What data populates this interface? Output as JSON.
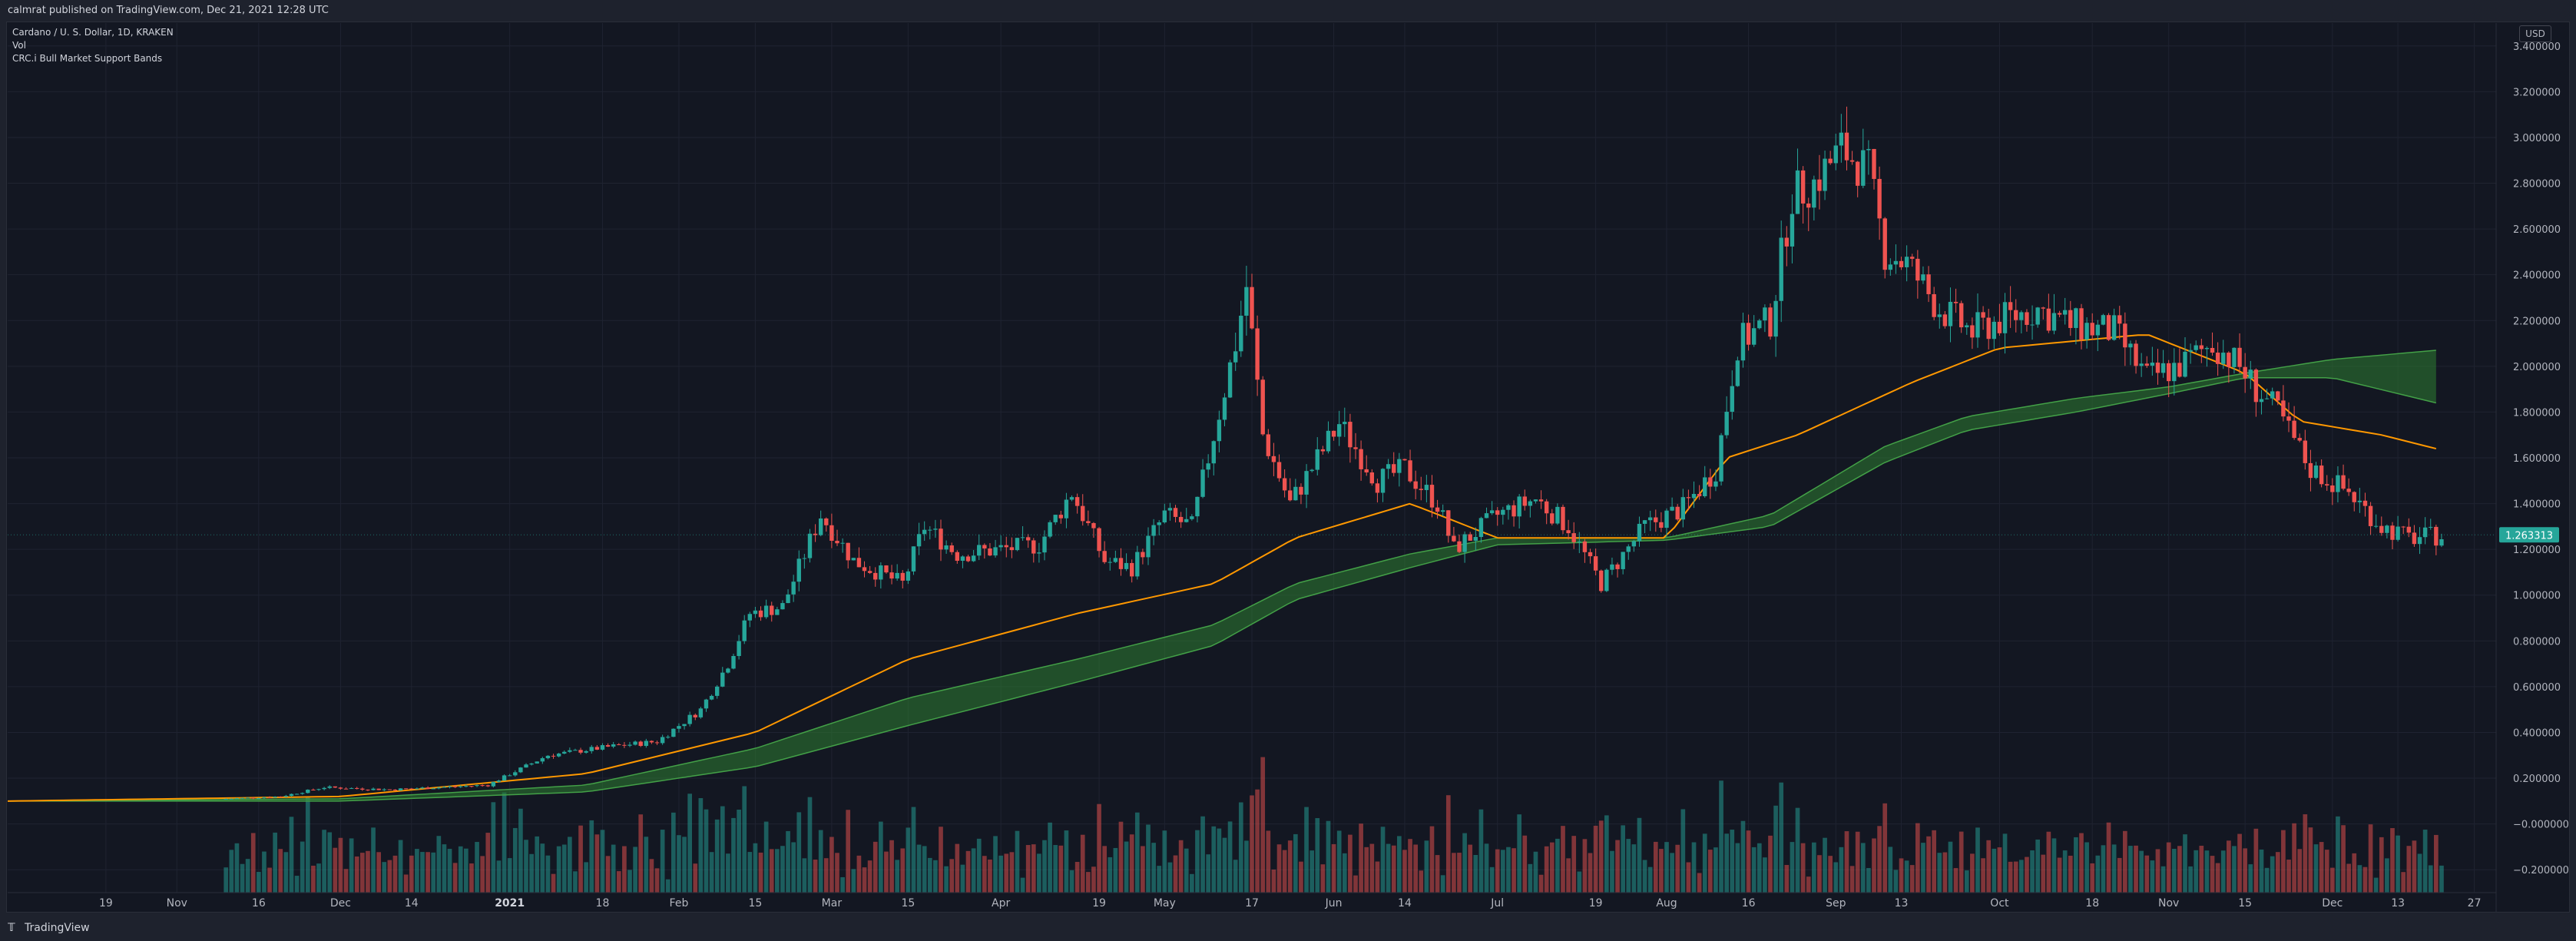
{
  "header": {
    "published": "calmrat published on TradingView.com, Dec 21, 2021 12:28 UTC"
  },
  "legend": {
    "symbol": "Cardano / U. S. Dollar, 1D, KRAKEN",
    "volume": "Vol",
    "indicator": "CRC.i Bull Market Support Bands"
  },
  "currency": "USD",
  "footer": {
    "brand": "TradingView",
    "logo_icon": "tradingview-logo-icon"
  },
  "last_price": "1.263313",
  "colors": {
    "up": "#26a69a",
    "down": "#ef5350",
    "bg": "#131722",
    "ema": "#ff9800",
    "band_bull": "#2e7d32",
    "band_bear": "#c62828",
    "price_line": "#26a69a"
  },
  "chart_data": {
    "type": "candlestick",
    "title": "Cardano / U. S. Dollar, 1D, KRAKEN",
    "ylim": [
      -0.3,
      3.5
    ],
    "y_ticks": [
      "3.400000",
      "3.200000",
      "3.000000",
      "2.800000",
      "2.600000",
      "2.400000",
      "2.200000",
      "2.000000",
      "1.800000",
      "1.600000",
      "1.400000",
      "1.200000",
      "1.000000",
      "0.800000",
      "0.600000",
      "0.400000",
      "0.200000",
      "−0.000000",
      "−0.200000"
    ],
    "y_tick_values": [
      3.4,
      3.2,
      3.0,
      2.8,
      2.6,
      2.4,
      2.2,
      2.0,
      1.8,
      1.6,
      1.4,
      1.2,
      1.0,
      0.8,
      0.6,
      0.4,
      0.2,
      0.0,
      -0.2
    ],
    "x_ticks": [
      {
        "label": "19",
        "date": "2020-10-19"
      },
      {
        "label": "Nov",
        "date": "2020-11-01"
      },
      {
        "label": "16",
        "date": "2020-11-16"
      },
      {
        "label": "Dec",
        "date": "2020-12-01"
      },
      {
        "label": "14",
        "date": "2020-12-14"
      },
      {
        "label": "2021",
        "date": "2021-01-01",
        "bold": true
      },
      {
        "label": "18",
        "date": "2021-01-18"
      },
      {
        "label": "Feb",
        "date": "2021-02-01"
      },
      {
        "label": "15",
        "date": "2021-02-15"
      },
      {
        "label": "Mar",
        "date": "2021-03-01"
      },
      {
        "label": "15",
        "date": "2021-03-15"
      },
      {
        "label": "Apr",
        "date": "2021-04-01"
      },
      {
        "label": "19",
        "date": "2021-04-19"
      },
      {
        "label": "May",
        "date": "2021-05-01"
      },
      {
        "label": "17",
        "date": "2021-05-17"
      },
      {
        "label": "Jun",
        "date": "2021-06-01"
      },
      {
        "label": "14",
        "date": "2021-06-14"
      },
      {
        "label": "Jul",
        "date": "2021-07-01"
      },
      {
        "label": "19",
        "date": "2021-07-19"
      },
      {
        "label": "Aug",
        "date": "2021-08-01"
      },
      {
        "label": "16",
        "date": "2021-08-16"
      },
      {
        "label": "Sep",
        "date": "2021-09-01"
      },
      {
        "label": "13",
        "date": "2021-09-13"
      },
      {
        "label": "Oct",
        "date": "2021-10-01"
      },
      {
        "label": "18",
        "date": "2021-10-18"
      },
      {
        "label": "Nov",
        "date": "2021-11-01"
      },
      {
        "label": "15",
        "date": "2021-11-15"
      },
      {
        "label": "Dec",
        "date": "2021-12-01"
      },
      {
        "label": "13",
        "date": "2021-12-13"
      },
      {
        "label": "27",
        "date": "2021-12-27"
      }
    ],
    "x_range": [
      "2020-10-01",
      "2021-12-31"
    ],
    "price_path": [
      [
        "2020-10-01",
        0.1
      ],
      [
        "2020-11-01",
        0.1
      ],
      [
        "2020-11-20",
        0.12
      ],
      [
        "2020-11-28",
        0.16
      ],
      [
        "2020-12-10",
        0.15
      ],
      [
        "2020-12-28",
        0.17
      ],
      [
        "2021-01-08",
        0.3
      ],
      [
        "2021-01-20",
        0.34
      ],
      [
        "2021-01-28",
        0.36
      ],
      [
        "2021-02-05",
        0.5
      ],
      [
        "2021-02-10",
        0.7
      ],
      [
        "2021-02-14",
        0.92
      ],
      [
        "2021-02-20",
        0.95
      ],
      [
        "2021-02-27",
        1.35
      ],
      [
        "2021-03-05",
        1.15
      ],
      [
        "2021-03-14",
        1.05
      ],
      [
        "2021-03-18",
        1.3
      ],
      [
        "2021-03-24",
        1.18
      ],
      [
        "2021-04-01",
        1.2
      ],
      [
        "2021-04-08",
        1.22
      ],
      [
        "2021-04-14",
        1.45
      ],
      [
        "2021-04-20",
        1.15
      ],
      [
        "2021-04-25",
        1.12
      ],
      [
        "2021-05-01",
        1.35
      ],
      [
        "2021-05-06",
        1.3
      ],
      [
        "2021-05-10",
        1.7
      ],
      [
        "2021-05-14",
        2.1
      ],
      [
        "2021-05-16",
        2.35
      ],
      [
        "2021-05-19",
        1.7
      ],
      [
        "2021-05-24",
        1.4
      ],
      [
        "2021-06-02",
        1.75
      ],
      [
        "2021-06-09",
        1.5
      ],
      [
        "2021-06-14",
        1.55
      ],
      [
        "2021-06-20",
        1.4
      ],
      [
        "2021-06-23",
        1.2
      ],
      [
        "2021-07-01",
        1.35
      ],
      [
        "2021-07-08",
        1.42
      ],
      [
        "2021-07-14",
        1.3
      ],
      [
        "2021-07-20",
        1.05
      ],
      [
        "2021-07-28",
        1.3
      ],
      [
        "2021-08-04",
        1.38
      ],
      [
        "2021-08-10",
        1.55
      ],
      [
        "2021-08-14",
        2.1
      ],
      [
        "2021-08-20",
        2.2
      ],
      [
        "2021-08-24",
        2.75
      ],
      [
        "2021-08-28",
        2.8
      ],
      [
        "2021-09-02",
        2.95
      ],
      [
        "2021-09-07",
        2.85
      ],
      [
        "2021-09-10",
        2.5
      ],
      [
        "2021-09-14",
        2.45
      ],
      [
        "2021-09-20",
        2.25
      ],
      [
        "2021-09-26",
        2.15
      ],
      [
        "2021-10-01",
        2.2
      ],
      [
        "2021-10-08",
        2.25
      ],
      [
        "2021-10-14",
        2.18
      ],
      [
        "2021-10-22",
        2.15
      ],
      [
        "2021-10-28",
        1.95
      ],
      [
        "2021-11-03",
        2.0
      ],
      [
        "2021-11-09",
        2.1
      ],
      [
        "2021-11-14",
        2.0
      ],
      [
        "2021-11-17",
        1.9
      ],
      [
        "2021-11-21",
        1.8
      ],
      [
        "2021-11-27",
        1.55
      ],
      [
        "2021-12-04",
        1.45
      ],
      [
        "2021-12-10",
        1.3
      ],
      [
        "2021-12-15",
        1.25
      ],
      [
        "2021-12-21",
        1.26
      ]
    ],
    "ema_21": [
      [
        "2020-10-01",
        0.1
      ],
      [
        "2020-12-01",
        0.12
      ],
      [
        "2021-01-15",
        0.22
      ],
      [
        "2021-02-15",
        0.4
      ],
      [
        "2021-03-15",
        0.72
      ],
      [
        "2021-04-15",
        0.92
      ],
      [
        "2021-05-10",
        1.05
      ],
      [
        "2021-05-25",
        1.25
      ],
      [
        "2021-06-15",
        1.4
      ],
      [
        "2021-07-01",
        1.25
      ],
      [
        "2021-08-01",
        1.25
      ],
      [
        "2021-08-12",
        1.6
      ],
      [
        "2021-08-25",
        1.7
      ],
      [
        "2021-09-15",
        1.93
      ],
      [
        "2021-10-01",
        2.08
      ],
      [
        "2021-10-28",
        2.14
      ],
      [
        "2021-11-15",
        1.97
      ],
      [
        "2021-11-25",
        1.76
      ],
      [
        "2021-12-10",
        1.7
      ],
      [
        "2021-12-20",
        1.64
      ]
    ],
    "bull_band_upper": [
      [
        "2020-10-01",
        0.1
      ],
      [
        "2020-12-01",
        0.11
      ],
      [
        "2021-01-15",
        0.17
      ],
      [
        "2021-02-15",
        0.33
      ],
      [
        "2021-03-15",
        0.55
      ],
      [
        "2021-04-15",
        0.72
      ],
      [
        "2021-05-10",
        0.87
      ],
      [
        "2021-05-25",
        1.05
      ],
      [
        "2021-06-15",
        1.18
      ],
      [
        "2021-07-01",
        1.25
      ],
      [
        "2021-08-01",
        1.25
      ],
      [
        "2021-08-20",
        1.35
      ],
      [
        "2021-09-10",
        1.65
      ],
      [
        "2021-09-25",
        1.78
      ],
      [
        "2021-10-15",
        1.86
      ],
      [
        "2021-11-01",
        1.91
      ],
      [
        "2021-11-15",
        1.97
      ],
      [
        "2021-12-01",
        2.03
      ],
      [
        "2021-12-20",
        2.07
      ]
    ],
    "bull_band_lower": [
      [
        "2020-10-01",
        0.1
      ],
      [
        "2020-12-01",
        0.1
      ],
      [
        "2021-01-15",
        0.14
      ],
      [
        "2021-02-15",
        0.25
      ],
      [
        "2021-03-15",
        0.43
      ],
      [
        "2021-04-15",
        0.62
      ],
      [
        "2021-05-10",
        0.78
      ],
      [
        "2021-05-25",
        0.98
      ],
      [
        "2021-06-15",
        1.12
      ],
      [
        "2021-07-01",
        1.22
      ],
      [
        "2021-08-01",
        1.24
      ],
      [
        "2021-08-20",
        1.3
      ],
      [
        "2021-09-10",
        1.58
      ],
      [
        "2021-09-25",
        1.72
      ],
      [
        "2021-10-15",
        1.8
      ],
      [
        "2021-11-01",
        1.88
      ],
      [
        "2021-11-15",
        1.95
      ],
      [
        "2021-12-01",
        1.95
      ],
      [
        "2021-12-20",
        1.84
      ]
    ]
  }
}
